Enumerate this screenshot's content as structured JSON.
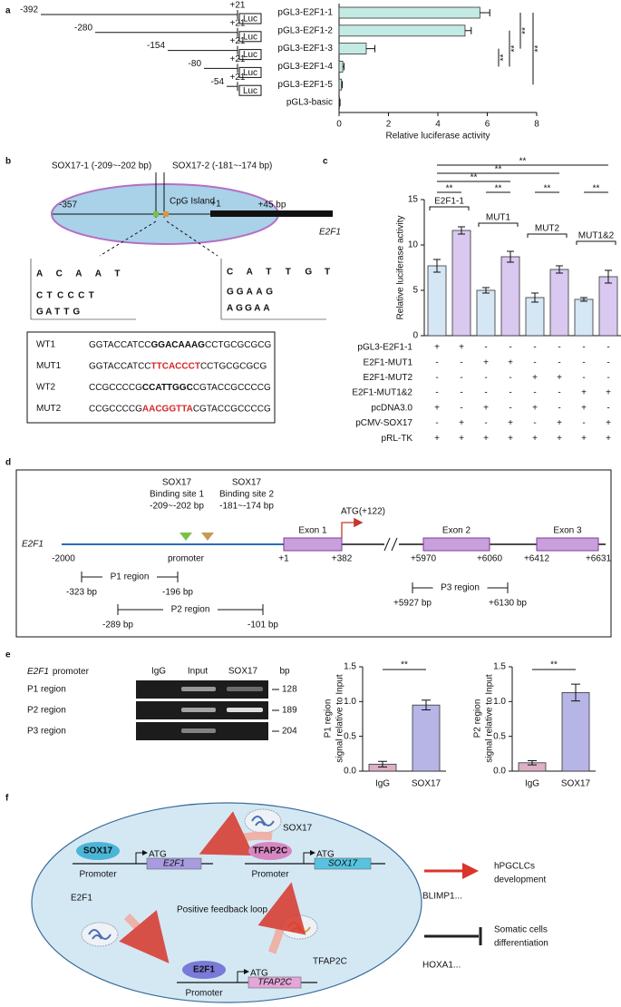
{
  "panel_letters": [
    "a",
    "b",
    "c",
    "d",
    "e",
    "f"
  ],
  "panel_a": {
    "constructs": [
      {
        "start": "-392",
        "end": "+21",
        "reporter": "Luc"
      },
      {
        "start": "-280",
        "end": "+21",
        "reporter": "Luc"
      },
      {
        "start": "-154",
        "end": "+21",
        "reporter": "Luc"
      },
      {
        "start": "-80",
        "end": "+21",
        "reporter": "Luc"
      },
      {
        "start": "-54",
        "end": "+21",
        "reporter": "Luc"
      }
    ]
  },
  "panel_b": {
    "site1": "SOX17-1 (-209~-202 bp)",
    "site2": "SOX17-2 (-181~-174 bp)",
    "island": "CpG Island",
    "start": "-357",
    "tss": "+1",
    "end": "+45 bp",
    "gene": "E2F1",
    "logo1": [
      [
        "A",
        "C",
        "A",
        "A",
        "T"
      ],
      [
        "C",
        "T",
        "C",
        "C",
        "C",
        "T"
      ],
      [
        "G",
        "A",
        "T",
        "T",
        "G"
      ]
    ],
    "logo2": [
      [
        "C",
        "A",
        "T",
        "T",
        "G",
        "T"
      ],
      [
        "G",
        "G",
        "A",
        "A",
        "G"
      ],
      [
        "A",
        "G",
        "G",
        "A",
        "A"
      ]
    ],
    "sequences": [
      [
        "WT1",
        "GGTACCATCC",
        "GGACAAAG",
        "CCTGCGCGCG"
      ],
      [
        "MUT1",
        "GGTACCATCC",
        "TTCACCCT",
        "CCTGCGCGCG"
      ],
      [
        "WT2",
        "CCGCCCCG",
        "CCATTGGC",
        "CGTACCGCCCCG"
      ],
      [
        "MUT2",
        "CCGCCCCG",
        "AACGGTTA",
        "CGTACCGCCCCG"
      ]
    ]
  },
  "panel_c": {
    "groups": [
      "E2F1-1",
      "MUT1",
      "MUT2",
      "MUT1&2"
    ],
    "table": [
      {
        "name": "pGL3-E2F1-1",
        "signs": [
          "+",
          "+",
          "-",
          "-",
          "-",
          "-",
          "-",
          "-"
        ]
      },
      {
        "name": "E2F1-MUT1",
        "signs": [
          "-",
          "-",
          "+",
          "+",
          "-",
          "-",
          "-",
          "-"
        ]
      },
      {
        "name": "E2F1-MUT2",
        "signs": [
          "-",
          "-",
          "-",
          "-",
          "+",
          "+",
          "-",
          "-"
        ]
      },
      {
        "name": "E2F1-MUT1&2",
        "signs": [
          "-",
          "-",
          "-",
          "-",
          "-",
          "-",
          "+",
          "+"
        ]
      },
      {
        "name": "pcDNA3.0",
        "signs": [
          "+",
          "-",
          "+",
          "-",
          "+",
          "-",
          "+",
          "-"
        ]
      },
      {
        "name": "pCMV-SOX17",
        "signs": [
          "-",
          "+",
          "-",
          "+",
          "-",
          "+",
          "-",
          "+"
        ]
      },
      {
        "name": "pRL-TK",
        "signs": [
          "+",
          "+",
          "+",
          "+",
          "+",
          "+",
          "+",
          "+"
        ]
      }
    ]
  },
  "panel_d": {
    "gene": "E2F1",
    "site1": [
      "SOX17",
      "Binding site 1",
      "-209~-202 bp"
    ],
    "site2": [
      "SOX17",
      "Binding site 2",
      "-181~-174 bp"
    ],
    "atg": "ATG(+122)",
    "exons": [
      "Exon 1",
      "Exon 2",
      "Exon 3"
    ],
    "promoter": "promoter",
    "positions": [
      "-2000",
      "+1",
      "+382",
      "+5970",
      "+6060",
      "+6412",
      "+6631"
    ],
    "regions": [
      {
        "name": "P1 region",
        "from": "-323 bp",
        "to": "-196 bp"
      },
      {
        "name": "P2 region",
        "from": "-289 bp",
        "to": "-101 bp"
      },
      {
        "name": "P3 region",
        "from": "+5927 bp",
        "to": "+6130 bp"
      }
    ]
  },
  "panel_e": {
    "gel": {
      "gene": "E2F1",
      "title": "promoter",
      "lanes": [
        "IgG",
        "Input",
        "SOX17"
      ],
      "unit": "bp",
      "rows": [
        {
          "name": "P1 region",
          "size": "128"
        },
        {
          "name": "P2 region",
          "size": "189"
        },
        {
          "name": "P3 region",
          "size": "204"
        }
      ]
    }
  },
  "panel_f": {
    "proteins": [
      "SOX17",
      "E2F1",
      "TFAP2C"
    ],
    "constructs": [
      {
        "factor": "SOX17",
        "promoter": "Promoter",
        "atg": "ATG",
        "gene": "E2F1"
      },
      {
        "factor": "TFAP2C",
        "promoter": "Promoter",
        "atg": "ATG",
        "gene": "SOX17"
      },
      {
        "factor": "E2F1",
        "promoter": "Promoter",
        "atg": "ATG",
        "gene": "TFAP2C"
      }
    ],
    "loop": "Positive feedback loop",
    "outcomes": [
      {
        "lines": [
          "hPGCLCs",
          "development"
        ],
        "markers": "BLIMP1..."
      },
      {
        "lines": [
          "Somatic cells",
          "differentiation"
        ],
        "markers": "HOXA1..."
      }
    ]
  },
  "chart_data": [
    {
      "type": "hbar",
      "categories": [
        "pGL3-E2F1-1",
        "pGL3-E2F1-2",
        "pGL3-E2F1-3",
        "pGL3-E2F1-4",
        "pGL3-E2F1-5",
        "pGL3-basic"
      ],
      "values": [
        5.7,
        5.1,
        1.1,
        0.15,
        0.1,
        0.02
      ],
      "errors": [
        0.4,
        0.25,
        0.35,
        0.05,
        0.03,
        0.02
      ],
      "color": "#c3ebe3",
      "xlim": [
        0,
        8
      ],
      "xticks": [
        0,
        2,
        4,
        6,
        8
      ],
      "xlabel": "Relative luciferase activity",
      "significance": [
        "**",
        "**",
        "**",
        "**"
      ]
    },
    {
      "type": "bar",
      "values": [
        7.7,
        11.6,
        5.0,
        8.7,
        4.2,
        7.3,
        4.0,
        6.5
      ],
      "errors": [
        0.7,
        0.4,
        0.3,
        0.6,
        0.5,
        0.4,
        0.2,
        0.7
      ],
      "colors": [
        "#d5e6f5",
        "#d9c8ef",
        "#d5e6f5",
        "#d9c8ef",
        "#d5e6f5",
        "#d9c8ef",
        "#d5e6f5",
        "#d9c8ef"
      ],
      "ylim": [
        0,
        15
      ],
      "yticks": [
        0,
        5,
        10,
        15
      ],
      "ylabel": "Relative luciferase activity",
      "significance": [
        "**",
        "**",
        "**",
        "**",
        "**",
        "**",
        "**"
      ]
    },
    {
      "type": "bar",
      "categories": [
        "IgG",
        "SOX17"
      ],
      "values": [
        0.1,
        0.95
      ],
      "errors": [
        0.04,
        0.07
      ],
      "colors": [
        "#dcb0c6",
        "#b7b5e6"
      ],
      "ylim": [
        0,
        1.5
      ],
      "yticks": [
        {
          "value": 0,
          "label": "0.0"
        },
        {
          "value": 0.5,
          "label": "0.5"
        },
        {
          "value": 1,
          "label": "1.0"
        },
        {
          "value": 1.5,
          "label": "1.5"
        }
      ],
      "ylabel": [
        "P1 region",
        "signal relative to Input"
      ],
      "significance": [
        "**"
      ]
    },
    {
      "type": "bar",
      "categories": [
        "IgG",
        "SOX17"
      ],
      "values": [
        0.12,
        1.13
      ],
      "errors": [
        0.03,
        0.12
      ],
      "colors": [
        "#dcb0c6",
        "#b7b5e6"
      ],
      "ylim": [
        0,
        1.5
      ],
      "yticks": [
        {
          "value": 0,
          "label": "0.0"
        },
        {
          "value": 0.5,
          "label": "0.5"
        },
        {
          "value": 1,
          "label": "1.0"
        },
        {
          "value": 1.5,
          "label": "1.5"
        }
      ],
      "ylabel": [
        "P2 region",
        "signal relative to Input"
      ],
      "significance": [
        "**"
      ]
    }
  ]
}
